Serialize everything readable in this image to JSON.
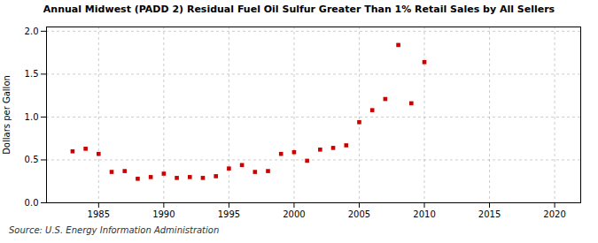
{
  "chart_data": {
    "type": "scatter",
    "title": "Annual Midwest (PADD 2) Residual Fuel Oil Sulfur Greater Than 1% Retail Sales by All Sellers",
    "ylabel": "Dollars per Gallon",
    "source": "Source: U.S. Energy Information Administration",
    "x": [
      1983,
      1984,
      1985,
      1986,
      1987,
      1988,
      1989,
      1990,
      1991,
      1992,
      1993,
      1994,
      1995,
      1996,
      1997,
      1998,
      1999,
      2000,
      2001,
      2002,
      2003,
      2004,
      2005,
      2006,
      2007,
      2008,
      2009,
      2010
    ],
    "values": [
      0.6,
      0.63,
      0.57,
      0.36,
      0.37,
      0.28,
      0.3,
      0.34,
      0.29,
      0.3,
      0.29,
      0.31,
      0.4,
      0.44,
      0.36,
      0.37,
      0.57,
      0.59,
      0.49,
      0.62,
      0.64,
      0.67,
      0.94,
      1.08,
      1.21,
      1.84,
      1.16,
      1.64
    ],
    "color": "#cc0000",
    "marker": "square",
    "xlim": [
      1981,
      2022
    ],
    "ylim": [
      0.0,
      2.05
    ],
    "xticks": [
      1985,
      1990,
      1995,
      2000,
      2005,
      2010,
      2015,
      2020
    ],
    "yticks": [
      {
        "value": 0.0,
        "label": "0.0"
      },
      {
        "value": 0.5,
        "label": "0.5"
      },
      {
        "value": 1.0,
        "label": "1.0"
      },
      {
        "value": 1.5,
        "label": "1.5"
      },
      {
        "value": 2.0,
        "label": "2.0"
      }
    ],
    "grid": true
  }
}
